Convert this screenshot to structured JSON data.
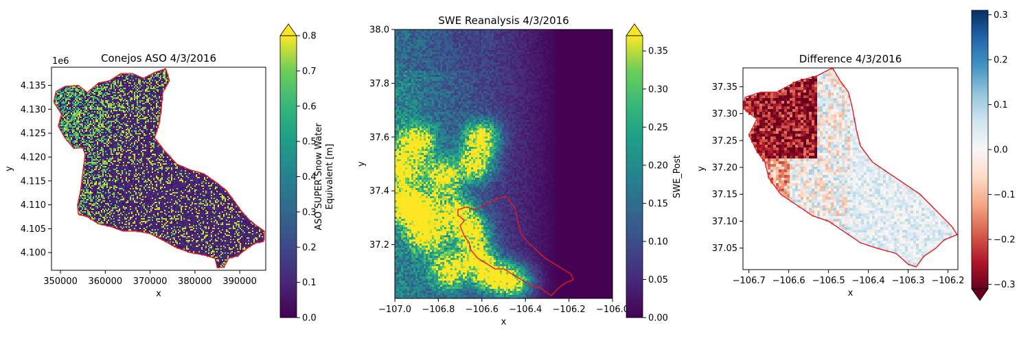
{
  "chart_data": [
    {
      "type": "heatmap",
      "title": "Conejos ASO 4/3/2016",
      "xlabel": "x",
      "ylabel": "y",
      "xlim": [
        348000,
        395800
      ],
      "ylim": [
        4096300,
        4138800
      ],
      "xticks": [
        350000,
        360000,
        370000,
        380000,
        390000
      ],
      "xtick_labels": [
        "350000",
        "360000",
        "370000",
        "380000",
        "390000"
      ],
      "yticks": [
        4100000,
        4105000,
        4110000,
        4115000,
        4120000,
        4125000,
        4130000,
        4135000
      ],
      "ytick_labels": [
        "4.100",
        "4.105",
        "4.110",
        "4.115",
        "4.120",
        "4.125",
        "4.130",
        "4.135"
      ],
      "y_offset_label": "1e6",
      "colormap": "viridis",
      "colorbar": {
        "label": "ASO SUPER Snow Water Equivalent [m]",
        "range": [
          0.0,
          0.8
        ],
        "ticks": [
          0.0,
          0.1,
          0.2,
          0.3,
          0.4,
          0.5,
          0.6,
          0.7,
          0.8
        ],
        "tick_labels": [
          "0.0",
          "0.1",
          "0.2",
          "0.3",
          "0.4",
          "0.5",
          "0.6",
          "0.7",
          "0.8"
        ],
        "extend": "max"
      },
      "watershed_outline_color": "#e31a1c",
      "watershed_outline": [
        [
          349000,
          4133700
        ],
        [
          351000,
          4134800
        ],
        [
          354000,
          4135000
        ],
        [
          356000,
          4133500
        ],
        [
          358500,
          4135500
        ],
        [
          361000,
          4136000
        ],
        [
          363500,
          4137500
        ],
        [
          366000,
          4137500
        ],
        [
          368500,
          4136500
        ],
        [
          371000,
          4137700
        ],
        [
          373500,
          4138500
        ],
        [
          374300,
          4136000
        ],
        [
          372800,
          4133500
        ],
        [
          372500,
          4130000
        ],
        [
          372000,
          4127000
        ],
        [
          371000,
          4124000
        ],
        [
          373500,
          4121000
        ],
        [
          376000,
          4118500
        ],
        [
          379000,
          4117300
        ],
        [
          382000,
          4116500
        ],
        [
          385000,
          4114500
        ],
        [
          387000,
          4113000
        ],
        [
          389000,
          4110500
        ],
        [
          390500,
          4108500
        ],
        [
          392000,
          4107000
        ],
        [
          393500,
          4105800
        ],
        [
          395500,
          4104500
        ],
        [
          395300,
          4102300
        ],
        [
          393500,
          4102000
        ],
        [
          391500,
          4100800
        ],
        [
          389500,
          4099300
        ],
        [
          387500,
          4098800
        ],
        [
          386500,
          4097000
        ],
        [
          385000,
          4096800
        ],
        [
          384500,
          4098800
        ],
        [
          382000,
          4099500
        ],
        [
          379000,
          4100000
        ],
        [
          376000,
          4101000
        ],
        [
          373000,
          4102500
        ],
        [
          370000,
          4104000
        ],
        [
          367000,
          4104500
        ],
        [
          364000,
          4104500
        ],
        [
          361000,
          4105500
        ],
        [
          358500,
          4106000
        ],
        [
          356000,
          4107500
        ],
        [
          354000,
          4108000
        ],
        [
          353800,
          4110000
        ],
        [
          354500,
          4113000
        ],
        [
          355000,
          4117000
        ],
        [
          355500,
          4120500
        ],
        [
          355000,
          4122000
        ],
        [
          353000,
          4121800
        ],
        [
          351000,
          4124000
        ],
        [
          349500,
          4126500
        ],
        [
          350200,
          4129000
        ],
        [
          348500,
          4131500
        ],
        [
          349000,
          4133700
        ]
      ]
    },
    {
      "type": "heatmap",
      "title": "SWE Reanalysis 4/3/2016",
      "xlabel": "x",
      "ylabel": "y",
      "xlim": [
        -107.0,
        -106.0
      ],
      "ylim": [
        37.0,
        38.0
      ],
      "xticks": [
        -107.0,
        -106.8,
        -106.6,
        -106.4,
        -106.2,
        -106.0
      ],
      "xtick_labels": [
        "−107.0",
        "−106.8",
        "−106.6",
        "−106.4",
        "−106.2",
        "−106.0"
      ],
      "yticks": [
        37.2,
        37.4,
        37.6,
        37.8,
        38.0
      ],
      "ytick_labels": [
        "37.2",
        "37.4",
        "37.6",
        "37.8",
        "38.0"
      ],
      "colormap": "viridis",
      "colorbar": {
        "label": "SWE_Post",
        "range": [
          0.0,
          0.37
        ],
        "ticks": [
          0.0,
          0.05,
          0.1,
          0.15,
          0.2,
          0.25,
          0.3,
          0.35
        ],
        "tick_labels": [
          "0.00",
          "0.05",
          "0.10",
          "0.15",
          "0.20",
          "0.25",
          "0.30",
          "0.35"
        ],
        "extend": "max"
      },
      "watershed_outline_color": "#e31a1c",
      "watershed_outline": [
        [
          -106.71,
          37.33
        ],
        [
          -106.67,
          37.34
        ],
        [
          -106.63,
          37.33
        ],
        [
          -106.58,
          37.35
        ],
        [
          -106.53,
          37.37
        ],
        [
          -106.49,
          37.38
        ],
        [
          -106.47,
          37.36
        ],
        [
          -106.45,
          37.34
        ],
        [
          -106.44,
          37.31
        ],
        [
          -106.43,
          37.27
        ],
        [
          -106.42,
          37.24
        ],
        [
          -106.39,
          37.21
        ],
        [
          -106.35,
          37.18
        ],
        [
          -106.31,
          37.15
        ],
        [
          -106.27,
          37.13
        ],
        [
          -106.23,
          37.11
        ],
        [
          -106.19,
          37.09
        ],
        [
          -106.18,
          37.07
        ],
        [
          -106.21,
          37.06
        ],
        [
          -106.23,
          37.05
        ],
        [
          -106.26,
          37.03
        ],
        [
          -106.28,
          37.01
        ],
        [
          -106.3,
          37.02
        ],
        [
          -106.33,
          37.04
        ],
        [
          -106.38,
          37.05
        ],
        [
          -106.42,
          37.07
        ],
        [
          -106.46,
          37.09
        ],
        [
          -106.5,
          37.11
        ],
        [
          -106.54,
          37.11
        ],
        [
          -106.58,
          37.13
        ],
        [
          -106.62,
          37.15
        ],
        [
          -106.65,
          37.18
        ],
        [
          -106.66,
          37.21
        ],
        [
          -106.68,
          37.23
        ],
        [
          -106.7,
          37.27
        ],
        [
          -106.68,
          37.29
        ],
        [
          -106.71,
          37.31
        ],
        [
          -106.71,
          37.33
        ]
      ],
      "high_swe_zones": [
        [
          -106.78,
          37.45
        ],
        [
          -106.72,
          37.32
        ],
        [
          -106.65,
          37.25
        ],
        [
          -106.62,
          37.15
        ],
        [
          -106.55,
          37.08
        ],
        [
          -106.45,
          37.06
        ],
        [
          -106.88,
          37.32
        ],
        [
          -106.95,
          37.35
        ],
        [
          -106.63,
          37.5
        ],
        [
          -106.6,
          37.6
        ],
        [
          -106.9,
          37.58
        ],
        [
          -106.97,
          37.48
        ],
        [
          -106.85,
          37.23
        ],
        [
          -106.75,
          37.1
        ]
      ]
    },
    {
      "type": "heatmap",
      "title": "Difference 4/3/2016",
      "xlabel": "x",
      "ylabel": "y",
      "xlim": [
        -106.715,
        -106.175
      ],
      "ylim": [
        37.01,
        37.385
      ],
      "xticks": [
        -106.7,
        -106.6,
        -106.5,
        -106.4,
        -106.3,
        -106.2
      ],
      "xtick_labels": [
        "−106.7",
        "−106.6",
        "−106.5",
        "−106.4",
        "−106.3",
        "−106.2"
      ],
      "yticks": [
        37.05,
        37.1,
        37.15,
        37.2,
        37.25,
        37.3,
        37.35
      ],
      "ytick_labels": [
        "37.05",
        "37.10",
        "37.15",
        "37.20",
        "37.25",
        "37.30",
        "37.35"
      ],
      "colormap": "RdBu",
      "colorbar": {
        "label": "",
        "range": [
          -0.31,
          0.31
        ],
        "ticks": [
          -0.3,
          -0.2,
          -0.1,
          0.0,
          0.1,
          0.2,
          0.3
        ],
        "tick_labels": [
          "−0.3",
          "−0.2",
          "−0.1",
          "0.0",
          "0.1",
          "0.2",
          "0.3"
        ],
        "extend": "min"
      },
      "watershed_outline_color": "#e31a1c",
      "watershed_outline": [
        [
          -106.71,
          37.33
        ],
        [
          -106.67,
          37.34
        ],
        [
          -106.63,
          37.34
        ],
        [
          -106.58,
          37.36
        ],
        [
          -106.53,
          37.37
        ],
        [
          -106.49,
          37.385
        ],
        [
          -106.47,
          37.36
        ],
        [
          -106.45,
          37.34
        ],
        [
          -106.44,
          37.31
        ],
        [
          -106.43,
          37.27
        ],
        [
          -106.42,
          37.24
        ],
        [
          -106.39,
          37.21
        ],
        [
          -106.35,
          37.19
        ],
        [
          -106.31,
          37.17
        ],
        [
          -106.27,
          37.15
        ],
        [
          -106.23,
          37.12
        ],
        [
          -106.19,
          37.09
        ],
        [
          -106.177,
          37.075
        ],
        [
          -106.21,
          37.065
        ],
        [
          -106.23,
          37.05
        ],
        [
          -106.26,
          37.035
        ],
        [
          -106.28,
          37.015
        ],
        [
          -106.3,
          37.02
        ],
        [
          -106.33,
          37.04
        ],
        [
          -106.38,
          37.05
        ],
        [
          -106.42,
          37.06
        ],
        [
          -106.46,
          37.08
        ],
        [
          -106.5,
          37.1
        ],
        [
          -106.54,
          37.11
        ],
        [
          -106.58,
          37.13
        ],
        [
          -106.62,
          37.15
        ],
        [
          -106.65,
          37.18
        ],
        [
          -106.66,
          37.21
        ],
        [
          -106.68,
          37.23
        ],
        [
          -106.7,
          37.26
        ],
        [
          -106.68,
          37.29
        ],
        [
          -106.715,
          37.31
        ],
        [
          -106.71,
          37.33
        ]
      ]
    }
  ]
}
